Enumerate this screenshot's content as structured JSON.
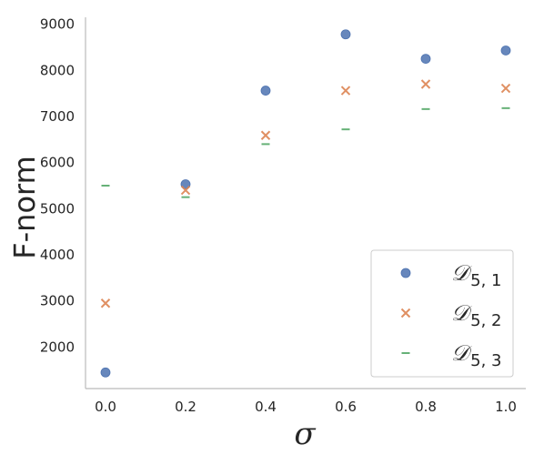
{
  "chart_data": {
    "type": "scatter",
    "xlabel": "σ",
    "ylabel": "F-norm",
    "x": [
      0.0,
      0.2,
      0.4,
      0.6,
      0.8,
      1.0
    ],
    "xticks": [
      "0.0",
      "0.2",
      "0.4",
      "0.6",
      "0.8",
      "1.0"
    ],
    "yticks": [
      "2000",
      "3000",
      "4000",
      "5000",
      "6000",
      "7000",
      "8000",
      "9000"
    ],
    "xlim": [
      -0.05,
      1.05
    ],
    "ylim": [
      1100,
      9150
    ],
    "grid": false,
    "legend_position": "lower-right",
    "series": [
      {
        "name": "𝒟5, 1",
        "base": "𝒟",
        "sub": "5, 1",
        "marker": "circle",
        "color": "#4c72b0",
        "values": [
          1450,
          5530,
          7560,
          8780,
          8250,
          8430
        ]
      },
      {
        "name": "𝒟5, 2",
        "base": "𝒟",
        "sub": "5, 2",
        "marker": "x",
        "color": "#dd8452",
        "values": [
          2950,
          5400,
          6590,
          7560,
          7700,
          7610
        ]
      },
      {
        "name": "𝒟5, 3",
        "base": "𝒟",
        "sub": "5, 3",
        "marker": "dash",
        "color": "#55a868",
        "values": [
          5500,
          5250,
          6400,
          6720,
          7160,
          7180
        ]
      }
    ]
  }
}
